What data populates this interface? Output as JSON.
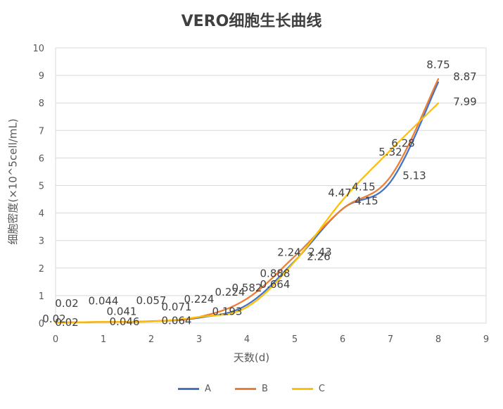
{
  "chart_data": {
    "type": "line",
    "title": "VERO细胞生长曲线",
    "xlabel": "天数(d)",
    "ylabel": "细胞密度(×10^5cell/mL)",
    "xlim": [
      0,
      9
    ],
    "ylim": [
      0,
      10
    ],
    "x_ticks": [
      "0",
      "1",
      "2",
      "3",
      "4",
      "5",
      "6",
      "7",
      "8",
      "9"
    ],
    "y_ticks": [
      "0",
      "1",
      "2",
      "3",
      "4",
      "5",
      "6",
      "7",
      "8",
      "9",
      "10"
    ],
    "grid": true,
    "legend_position": "bottom",
    "series": [
      {
        "name": "A",
        "color": "#4472C4",
        "x": [
          0,
          1,
          2,
          3,
          4,
          5,
          6,
          7,
          8
        ],
        "y": [
          0.02,
          0.041,
          0.064,
          0.193,
          0.664,
          2.26,
          4.15,
          5.13,
          8.75
        ],
        "labels": [
          "0.02",
          "0.041",
          "0.064",
          "0.193",
          "0.664",
          "2.26",
          "4.15",
          "5.13",
          "8.75"
        ]
      },
      {
        "name": "B",
        "color": "#ED7D31",
        "x": [
          0,
          1,
          2,
          3,
          4,
          5,
          6,
          7,
          8
        ],
        "y": [
          0.02,
          0.046,
          0.071,
          0.224,
          0.888,
          2.43,
          4.15,
          5.32,
          8.87
        ],
        "labels": [
          "0.02",
          "0.046",
          "0.071",
          "0.224",
          "0.888",
          "2.43",
          "4.15",
          "5.32",
          "8.87"
        ]
      },
      {
        "name": "C",
        "color": "#FFC000",
        "x": [
          0,
          1,
          2,
          3,
          4,
          5,
          6,
          7,
          8
        ],
        "y": [
          0.02,
          0.044,
          0.057,
          0.224,
          0.582,
          2.24,
          4.47,
          6.28,
          7.99
        ],
        "labels": [
          "0.02",
          "0.044",
          "0.057",
          "0.224",
          "0.582",
          "2.24",
          "4.47",
          "6.28",
          "7.99"
        ]
      }
    ]
  }
}
